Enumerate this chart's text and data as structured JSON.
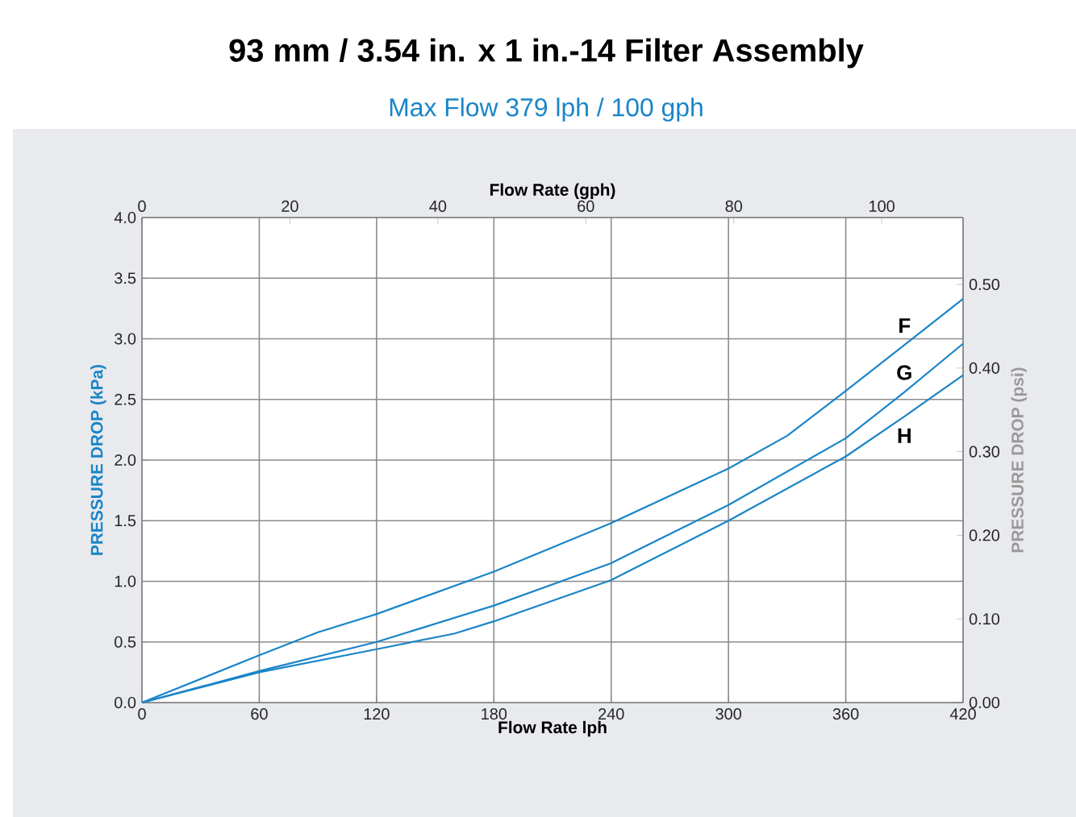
{
  "chart_data": {
    "type": "line",
    "title": "93 mm / 3.54 in. x 1 in.-14 Filter Assembly",
    "subtitle": "Max Flow 379 lph / 100 gph",
    "xlabel": "Flow Rate lph",
    "x2label": "Flow Rate (gph)",
    "ylabel": "PRESSURE DROP (kPa)",
    "y2label": "PRESSURE DROP (psi)",
    "xlim": [
      0,
      420
    ],
    "xticks": [
      0,
      60,
      120,
      180,
      240,
      300,
      360,
      420
    ],
    "x2lim": [
      0,
      111
    ],
    "x2ticks": [
      0,
      20,
      40,
      60,
      80,
      100
    ],
    "ylim": [
      0,
      4.0
    ],
    "yticks": [
      {
        "value": 0,
        "label": "0.0"
      },
      {
        "value": 0.5,
        "label": "0.5"
      },
      {
        "value": 1.0,
        "label": "1.0"
      },
      {
        "value": 1.5,
        "label": "1.5"
      },
      {
        "value": 2.0,
        "label": "2.0"
      },
      {
        "value": 2.5,
        "label": "2.5"
      },
      {
        "value": 3.0,
        "label": "3.0"
      },
      {
        "value": 3.5,
        "label": "3.5"
      },
      {
        "value": 4.0,
        "label": "4.0"
      }
    ],
    "y2lim": [
      0,
      0.58
    ],
    "y2ticks": [
      {
        "value": 0,
        "label": "0.00"
      },
      {
        "value": 0.1,
        "label": "0.10"
      },
      {
        "value": 0.2,
        "label": "0.20"
      },
      {
        "value": 0.3,
        "label": "0.30"
      },
      {
        "value": 0.4,
        "label": "0.40"
      },
      {
        "value": 0.5,
        "label": "0.50"
      }
    ],
    "grid": true,
    "line_style": "solid",
    "series": [
      {
        "name": "F",
        "color": "#1a85c8",
        "x": [
          0,
          60,
          90,
          120,
          180,
          240,
          300,
          330,
          360,
          390,
          420
        ],
        "values": [
          0,
          0.39,
          0.58,
          0.73,
          1.08,
          1.48,
          1.93,
          2.2,
          2.57,
          2.95,
          3.33
        ]
      },
      {
        "name": "G",
        "color": "#1a85c8",
        "x": [
          0,
          60,
          120,
          180,
          240,
          300,
          360,
          390,
          420
        ],
        "values": [
          0,
          0.26,
          0.5,
          0.8,
          1.15,
          1.63,
          2.18,
          2.56,
          2.96
        ]
      },
      {
        "name": "H",
        "color": "#1a85c8",
        "x": [
          0,
          60,
          120,
          160,
          180,
          240,
          300,
          360,
          390,
          420
        ],
        "values": [
          0,
          0.25,
          0.44,
          0.57,
          0.67,
          1.01,
          1.5,
          2.03,
          2.36,
          2.7
        ]
      }
    ]
  }
}
